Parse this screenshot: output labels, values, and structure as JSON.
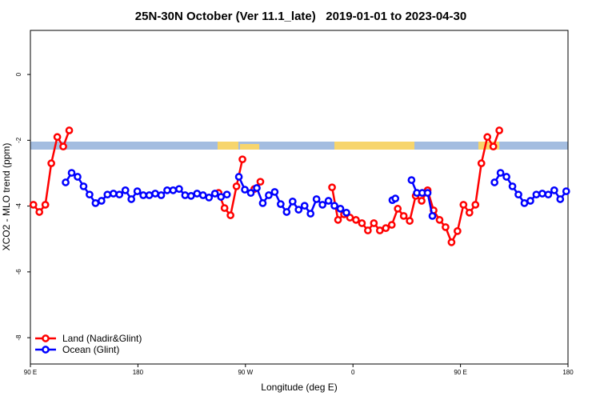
{
  "chart_data": {
    "type": "line",
    "title": "25N-30N October (Ver 11.1_late)   2019-01-01 to 2023-04-30",
    "xlabel": "Longitude (deg E)",
    "ylabel": "XCO2 - MLO trend (ppm)",
    "xlim": [
      90,
      540
    ],
    "ylim": [
      -8.8,
      1.34
    ],
    "xticks": [
      {
        "value": 90,
        "label": "90 E"
      },
      180,
      {
        "value": 270,
        "label": "90 W"
      },
      {
        "value": 360,
        "label": "0"
      },
      {
        "value": 450,
        "label": "90 E"
      },
      {
        "value": 540,
        "label": "180"
      }
    ],
    "yticks": [
      0,
      -2,
      -4,
      -6,
      -8
    ],
    "legend": "bottom-left",
    "series": [
      {
        "name": "Land (Nadir&Glint)",
        "color": "#ff0000",
        "x": [
          92.5,
          97.5,
          102.5,
          107.5,
          112.5,
          117.5,
          122.5,
          200,
          247.5,
          252.5,
          257.5,
          262.5,
          267.5,
          272.5,
          277.5,
          282.5,
          310,
          342.5,
          347.5,
          352.5,
          357.5,
          362.5,
          367.5,
          372.5,
          377.5,
          382.5,
          387.5,
          392.5,
          397.5,
          402.5,
          407.5,
          412.5,
          417.5,
          422.5,
          427.5,
          432.5,
          437.5,
          442.5,
          447.5,
          452.5,
          457.5,
          462.5,
          467.5,
          472.5,
          477.5,
          482.5
        ],
        "values": [
          -3.96,
          -4.18,
          -3.96,
          -2.7,
          -1.9,
          -2.19,
          -1.7,
          null,
          -3.6,
          -4.06,
          -4.28,
          -3.4,
          -2.58,
          null,
          -3.48,
          -3.26,
          null,
          -3.43,
          -4.42,
          -4.25,
          -4.35,
          -4.42,
          -4.52,
          -4.74,
          -4.52,
          -4.74,
          -4.67,
          -4.57,
          -4.08,
          -4.3,
          -4.45,
          -3.69,
          -3.84,
          -3.52,
          -4.13,
          -4.42,
          -4.64,
          -5.1,
          -4.76,
          -3.96,
          -4.2,
          -3.96,
          -2.7,
          -1.9,
          -2.19,
          -1.7
        ]
      },
      {
        "name": "Ocean (Glint)",
        "color": "#0000ff",
        "x": [
          119.5,
          124.5,
          129.5,
          134.5,
          139.5,
          144.5,
          149.5,
          154.5,
          159.5,
          164.5,
          169.5,
          174.5,
          179.5,
          184.5,
          189.5,
          194.5,
          199.5,
          204.5,
          209.5,
          214.5,
          219.5,
          224.5,
          229.5,
          234.5,
          239.5,
          244.5,
          249.5,
          254.5,
          259.5,
          264.5,
          269.5,
          274.5,
          279.5,
          284.5,
          289.5,
          294.5,
          299.5,
          304.5,
          309.5,
          314.5,
          319.5,
          324.5,
          329.5,
          334.5,
          339.5,
          344.5,
          349.5,
          354.5,
          374,
          393,
          395.5,
          402,
          409,
          413.5,
          418,
          422.5,
          426.5,
          450,
          478.5,
          483.5,
          488.5,
          493.5,
          498.5,
          503.5,
          508.5,
          513.5,
          518.5,
          523.5,
          528.5,
          533.5,
          538.5
        ],
        "values": [
          -3.28,
          -2.99,
          -3.11,
          -3.4,
          -3.65,
          -3.91,
          -3.84,
          -3.65,
          -3.62,
          -3.65,
          -3.52,
          -3.79,
          -3.55,
          -3.67,
          -3.67,
          -3.62,
          -3.67,
          -3.52,
          -3.52,
          -3.48,
          -3.67,
          -3.69,
          -3.62,
          -3.67,
          -3.74,
          -3.62,
          -3.72,
          -3.65,
          null,
          -3.11,
          -3.5,
          -3.6,
          -3.45,
          -3.91,
          -3.67,
          -3.57,
          -3.94,
          -4.18,
          -3.86,
          -4.11,
          -3.99,
          -4.23,
          -3.79,
          -3.96,
          -3.84,
          -3.99,
          -4.08,
          -4.2,
          null,
          -3.82,
          -3.77,
          null,
          -3.21,
          -3.6,
          -3.6,
          -3.6,
          -4.3,
          null,
          -3.28,
          -2.99,
          -3.11,
          -3.4,
          -3.65,
          -3.91,
          -3.84,
          -3.65,
          -3.62,
          -3.65,
          -3.52,
          -3.79,
          -3.55
        ]
      }
    ]
  }
}
